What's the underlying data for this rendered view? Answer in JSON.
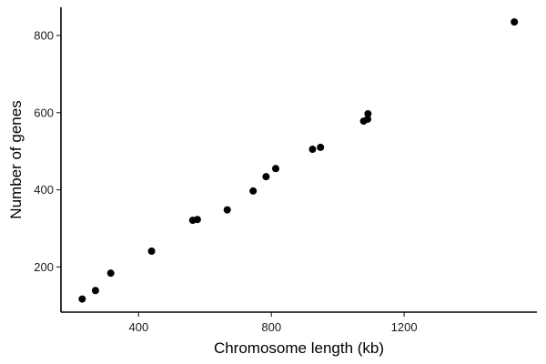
{
  "chart_data": {
    "type": "scatter",
    "title": "",
    "xlabel": "Chromosome length (kb)",
    "ylabel": "Number of genes",
    "xlim": [
      166,
      1600
    ],
    "ylim": [
      83,
      873
    ],
    "xticks": [
      400,
      800,
      1200
    ],
    "yticks": [
      200,
      400,
      600,
      800
    ],
    "grid": false,
    "legend": "none",
    "point_color": "#000000",
    "points": [
      {
        "x": 230,
        "y": 117
      },
      {
        "x": 270,
        "y": 139
      },
      {
        "x": 316,
        "y": 184
      },
      {
        "x": 439,
        "y": 241
      },
      {
        "x": 563,
        "y": 321
      },
      {
        "x": 577,
        "y": 323
      },
      {
        "x": 667,
        "y": 348
      },
      {
        "x": 745,
        "y": 397
      },
      {
        "x": 784,
        "y": 434
      },
      {
        "x": 813,
        "y": 455
      },
      {
        "x": 924,
        "y": 505
      },
      {
        "x": 948,
        "y": 510
      },
      {
        "x": 1078,
        "y": 578
      },
      {
        "x": 1090,
        "y": 583
      },
      {
        "x": 1091,
        "y": 597
      },
      {
        "x": 1532,
        "y": 835
      }
    ]
  }
}
